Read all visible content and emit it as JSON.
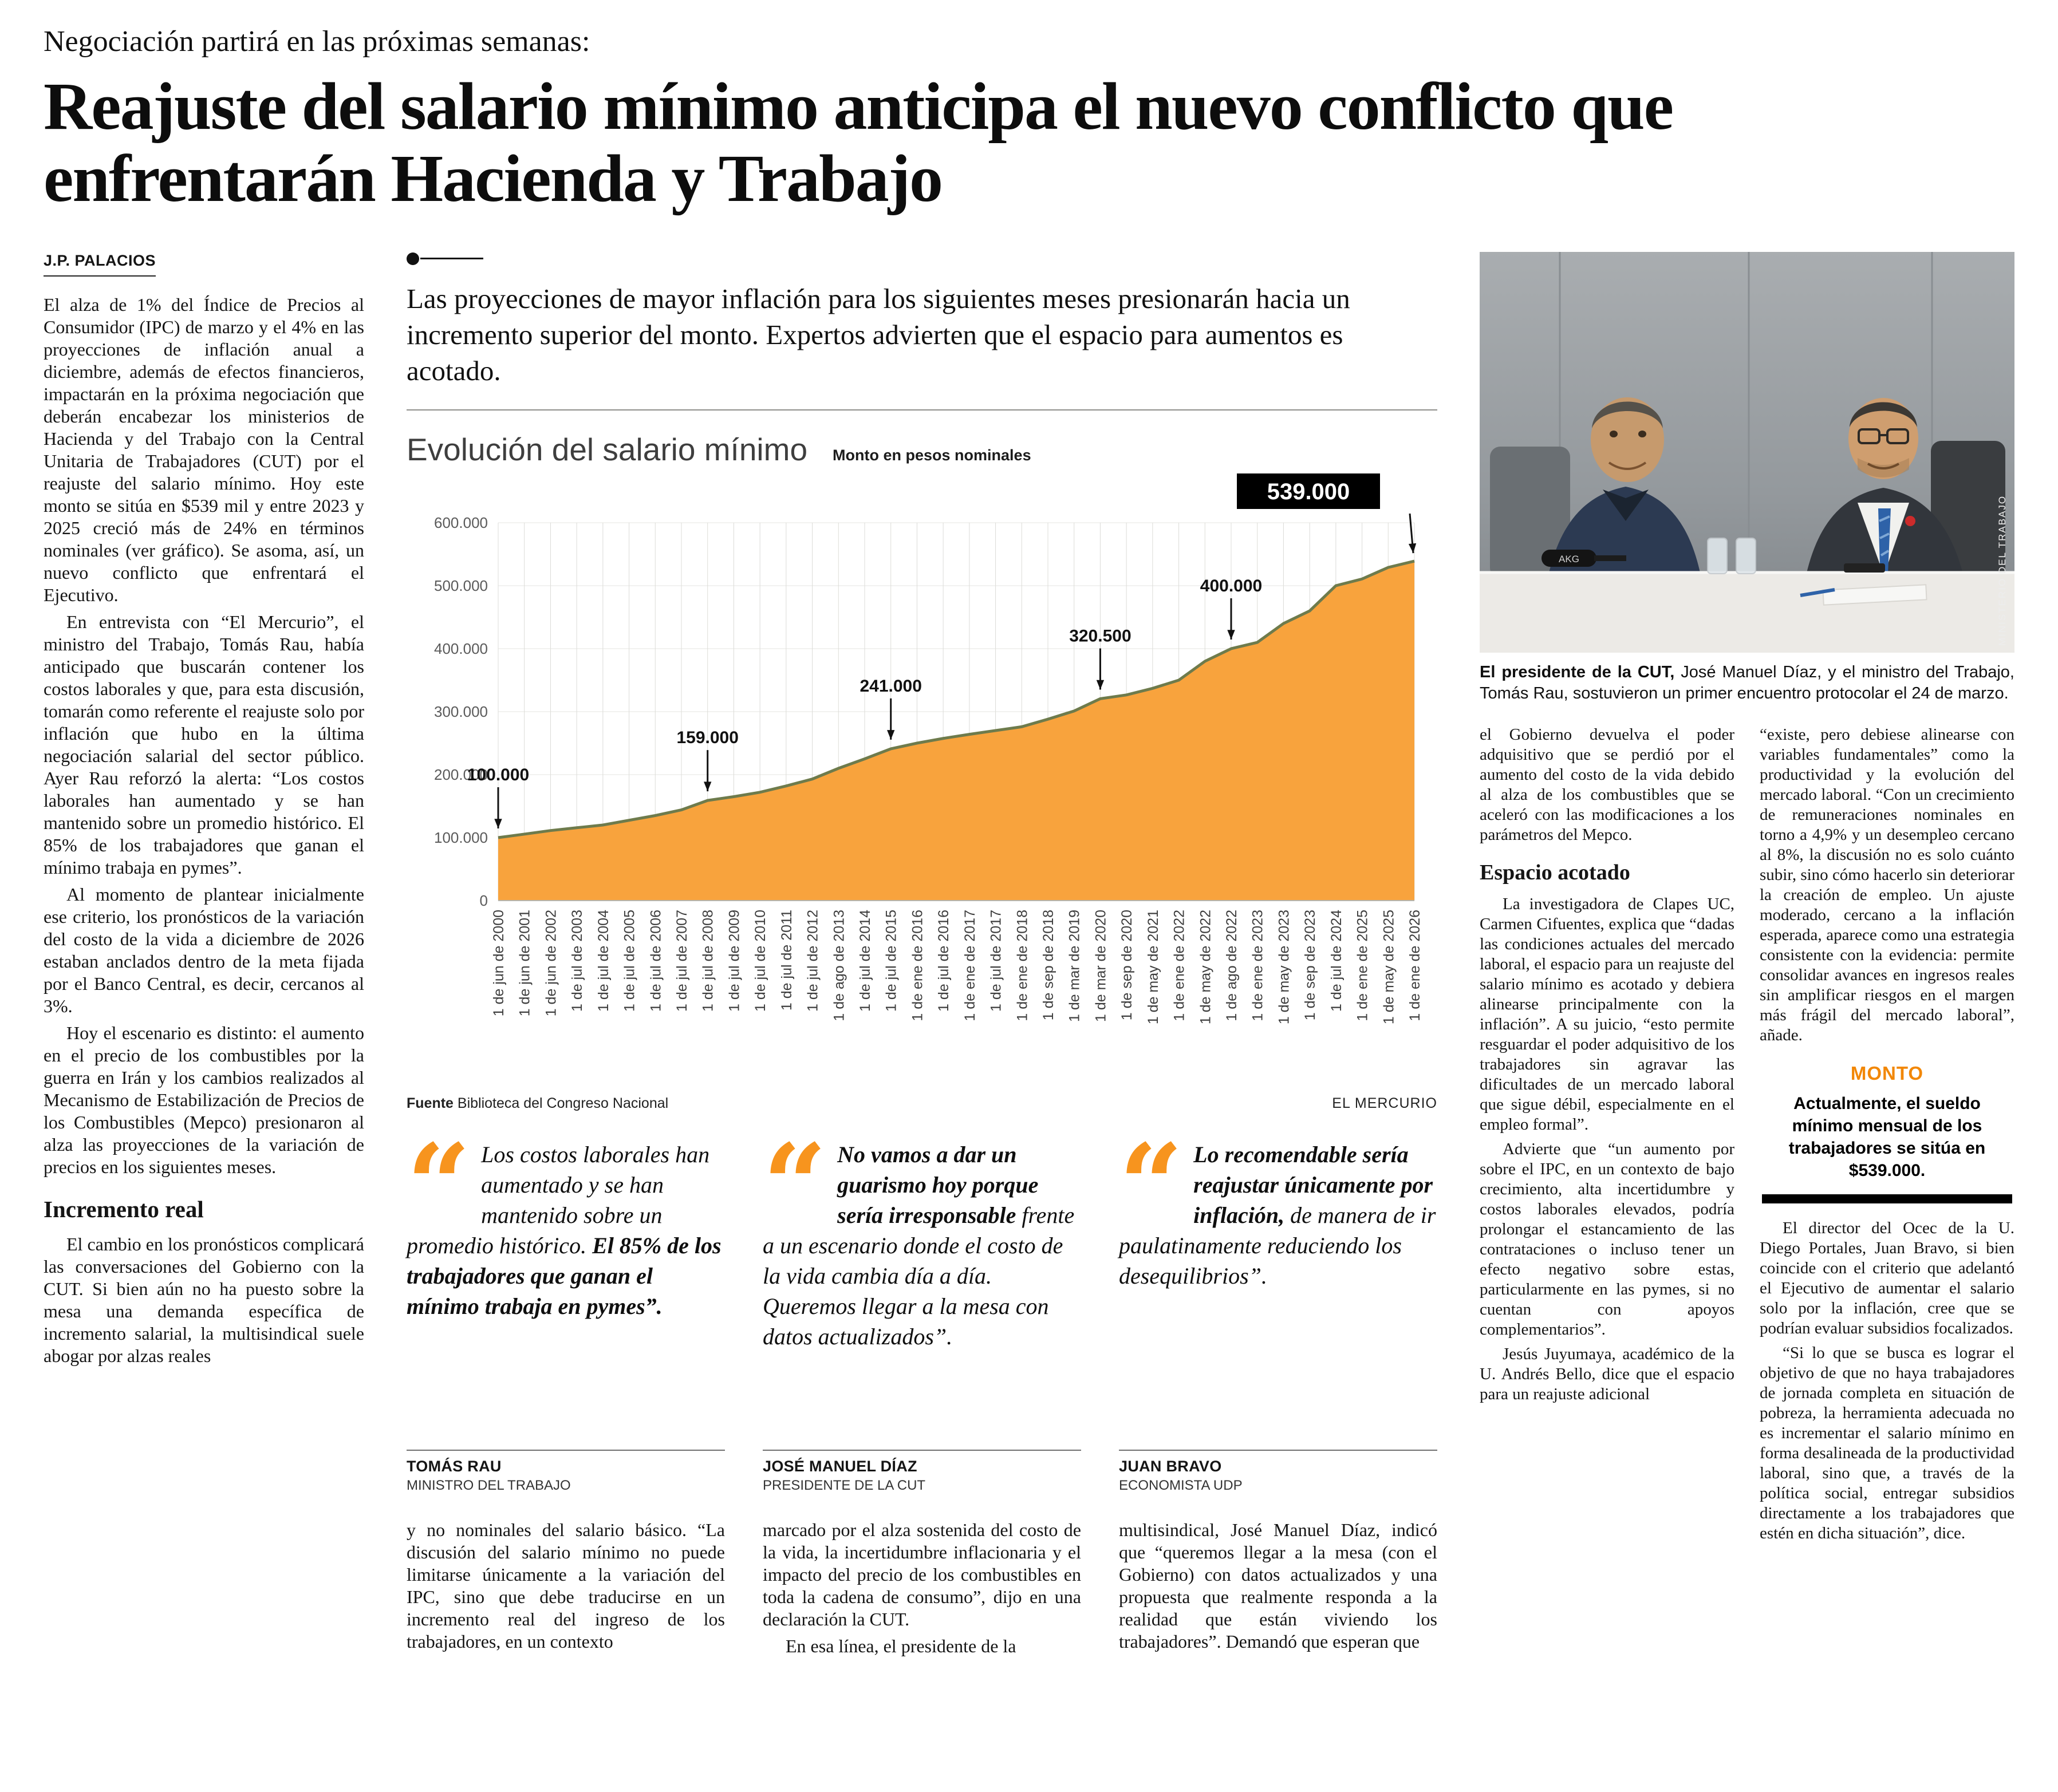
{
  "accent": {
    "orange": "#f7941e",
    "chart_fill": "#f8a33d",
    "chart_line": "#6e7b4c"
  },
  "masthead": {
    "kicker": "Negociación partirá en las próximas semanas:",
    "headline": "Reajuste del salario mínimo anticipa el nuevo conflicto que enfrentarán Hacienda y Trabajo",
    "byline": "J.P. PALACIOS"
  },
  "lead": "Las proyecciones de mayor inflación para los siguientes meses presionarán hacia un incremento superior del monto. Expertos advierten que el espacio para aumentos es acotado.",
  "left_column": {
    "paragraphs": [
      "El alza de 1% del Índice de Precios al Consumidor (IPC) de marzo y el 4% en las proyecciones de inflación anual a diciembre, además de efectos financieros, impactarán en la próxima negociación que deberán encabezar los ministerios de Hacienda y del Trabajo con la Central Unitaria de Trabajadores (CUT) por el reajuste del salario mínimo. Hoy este monto se sitúa en $539 mil y entre 2023 y 2025 creció más de 24% en términos nominales (ver gráfico). Se asoma, así, un nuevo conflicto que enfrentará el Ejecutivo.",
      "En entrevista con “El Mercurio”, el ministro del Trabajo, Tomás Rau, había anticipado que buscarán contener los costos laborales y que, para esta discusión, tomarán como referente el reajuste solo por inflación que hubo en la última negociación salarial del sector público. Ayer Rau reforzó la alerta: “Los costos laborales han aumentado y se han mantenido sobre un promedio histórico. El 85% de los trabajadores que ganan el mínimo trabaja en pymes”.",
      "Al momento de plantear inicialmente ese criterio, los pronósticos de la variación del costo de la vida a diciembre de 2026 estaban anclados dentro de la meta fijada por el Banco Central, es decir, cercanos al 3%.",
      "Hoy el escenario es distinto: el aumento en el precio de los combustibles por la guerra en Irán y los cambios realizados al Mecanismo de Estabilización de Precios de los Combustibles (Mepco) presionaron al alza las proyecciones de la variación de precios en los siguientes meses."
    ],
    "subhead": "Incremento real",
    "paragraphs_after": [
      "El cambio en los pronósticos complicará las conversaciones del Gobierno con la CUT. Si bien aún no ha puesto sobre la mesa una demanda específica de incremento salarial, la multisindical suele abogar por alzas reales"
    ]
  },
  "chart": {
    "title": "Evolución del salario mínimo",
    "subtitle": "Monto en pesos nominales",
    "source_label": "Fuente",
    "source": "Biblioteca del Congreso Nacional",
    "credit": "EL MERCURIO"
  },
  "chart_data": {
    "type": "area",
    "title": "Evolución del salario mínimo",
    "subtitle": "Monto en pesos nominales",
    "ylabel": "",
    "xlabel": "",
    "ylim": [
      0,
      600000
    ],
    "yticks": [
      0,
      100000,
      200000,
      300000,
      400000,
      500000,
      600000
    ],
    "grid": true,
    "area_color": "#f8a33d",
    "line_color": "#6e7b4c",
    "x": [
      "1 de jun de 2000",
      "1 de jun de 2001",
      "1 de jun de 2002",
      "1 de jul de 2003",
      "1 de jul de 2004",
      "1 de jul de 2005",
      "1 de jul de 2006",
      "1 de jul de 2007",
      "1 de jul de 2008",
      "1 de jul de 2009",
      "1 de jul de 2010",
      "1 de jul de 2011",
      "1 de jul de 2012",
      "1 de ago de 2013",
      "1 de jul de 2014",
      "1 de jul de 2015",
      "1 de ene de 2016",
      "1 de jul de 2016",
      "1 de ene de 2017",
      "1 de jul de 2017",
      "1 de ene de 2018",
      "1 de sep de 2018",
      "1 de mar de 2019",
      "1 de mar de 2020",
      "1 de sep de 2020",
      "1 de may de 2021",
      "1 de ene de 2022",
      "1 de may de 2022",
      "1 de ago de 2022",
      "1 de ene de 2023",
      "1 de may de 2023",
      "1 de sep de 2023",
      "1 de jul de 2024",
      "1 de ene de 2025",
      "1 de may de 2025",
      "1 de ene de 2026"
    ],
    "values": [
      100000,
      105500,
      111200,
      115648,
      120000,
      127500,
      135000,
      144000,
      159000,
      165000,
      172000,
      182000,
      193000,
      210000,
      225000,
      241000,
      250000,
      257500,
      264000,
      270000,
      276000,
      288000,
      301000,
      320500,
      326500,
      337000,
      350000,
      380000,
      400000,
      410000,
      440000,
      460000,
      500000,
      510636,
      529000,
      539000
    ],
    "annotations": [
      {
        "label": "100.000",
        "index": 0
      },
      {
        "label": "159.000",
        "index": 8
      },
      {
        "label": "241.000",
        "index": 15
      },
      {
        "label": "320.500",
        "index": 23
      },
      {
        "label": "400.000",
        "index": 28
      }
    ],
    "highlight": {
      "label": "539.000",
      "index": 35
    },
    "source": "Biblioteca del Congreso Nacional"
  },
  "quote_glyph": "“",
  "quotes": [
    {
      "segments": [
        {
          "text": "Los costos laborales han aumentado y se han mantenido sobre un promedio histórico. ",
          "bold": false
        },
        {
          "text": "El 85% de los trabajadores que ganan el mínimo trabaja en pymes”.",
          "bold": true
        }
      ],
      "name": "TOMÁS RAU",
      "role": "MINISTRO DEL TRABAJO"
    },
    {
      "segments": [
        {
          "text": "No vamos a dar un guarismo hoy porque sería irresponsable ",
          "bold": true
        },
        {
          "text": "frente a un escenario donde el costo de la vida cambia día a día. Queremos llegar a la mesa con datos actualizados”.",
          "bold": false
        }
      ],
      "name": "JOSÉ MANUEL DÍAZ",
      "role": "PRESIDENTE DE LA CUT"
    },
    {
      "segments": [
        {
          "text": "Lo recomendable sería reajustar únicamente por inflación, ",
          "bold": true
        },
        {
          "text": "de manera de ir paulatinamente reduciendo los desequilibrios”.",
          "bold": false
        }
      ],
      "name": "JUAN BRAVO",
      "role": "ECONOMISTA UDP"
    }
  ],
  "continuation": {
    "col1": [
      "y no nominales del salario básico. “La discusión del salario mínimo no puede limitarse únicamente a la variación del IPC, sino que debe traducirse en un incremento real del ingreso de los trabajadores, en un contexto"
    ],
    "col2": [
      "marcado por el alza sostenida del costo de la vida, la incertidumbre inflacionaria y el impacto del precio de los combustibles en toda la cadena de consumo”, dijo en una declaración la CUT.",
      "En esa línea, el presidente de la"
    ],
    "col3": [
      "multisindical, José Manuel Díaz, indicó que “queremos llegar a la mesa (con el Gobierno) con datos actualizados y una propuesta que realmente responda a la realidad que están viviendo los trabajadores”. Demandó que esperan que"
    ]
  },
  "photo": {
    "caption_lead": "El presidente de la CUT,",
    "caption_text": " José Manuel Díaz, y el ministro del Trabajo, Tomás Rau, sostuvieron un primer encuentro protocolar el 24 de marzo.",
    "credit": "MINISTERIO DEL TRABAJO",
    "mic_label": "AKG"
  },
  "right_columns": {
    "col_a": {
      "paragraphs_before": [
        "el Gobierno devuelva el poder adquisitivo que se perdió por el aumento del costo de la vida debido al alza de los combustibles que se aceleró con las modificaciones a los parámetros del Mepco."
      ],
      "subhead": "Espacio acotado",
      "paragraphs_after": [
        "La investigadora de Clapes UC, Carmen Cifuentes, explica que “dadas las condiciones actuales del mercado laboral, el espacio para un reajuste del salario mínimo es acotado y debiera alinearse principalmente con la inflación”. A su juicio, “esto permite resguardar el poder adquisitivo de los trabajadores sin agravar las dificultades de un mercado laboral que sigue débil, especialmente en el empleo formal”.",
        "Advierte que “un aumento por sobre el IPC, en un contexto de bajo crecimiento, alta incertidumbre y costos laborales elevados, podría prolongar el estancamiento de las contrataciones o incluso tener un efecto negativo sobre estas, particularmente en las pymes, si no cuentan con apoyos complementarios”.",
        "Jesús Juyumaya, académico de la U. Andrés Bello, dice que el espacio para un reajuste adicional"
      ]
    },
    "col_b": {
      "paragraphs_1": [
        "“existe, pero debiese alinearse con variables fundamentales” como la productividad y la evolución del mercado laboral. “Con un crecimiento de remuneraciones nominales en torno a 4,9% y un desempleo cercano al 8%, la discusión no es solo cuánto subir, sino cómo hacerlo sin deteriorar la creación de empleo. Un ajuste moderado, cercano a la inflación esperada, aparece como una estrategia consistente con la evidencia: permite consolidar avances en ingresos reales sin amplificar riesgos en el margen más frágil del mercado laboral”, añade."
      ],
      "paragraphs_2": [
        "El director del Ocec de la U. Diego Portales, Juan Bravo, si bien coincide con el criterio que adelantó el Ejecutivo de aumentar el salario solo por la inflación, cree que se podrían evaluar subsidios focalizados.",
        "“Si lo que se busca es lograr el objetivo de que no haya trabajadores de jornada completa en situación de pobreza, la herramienta adecuada no es incrementar el salario mínimo en forma desalineada de la productividad laboral, sino que, a través de la política social, entregar subsidios directamente a los trabajadores que estén en dicha situación”, dice."
      ]
    }
  },
  "monto_box": {
    "title": "MONTO",
    "text": "Actualmente, el sueldo mínimo mensual de los trabajadores se sitúa en $539.000."
  }
}
